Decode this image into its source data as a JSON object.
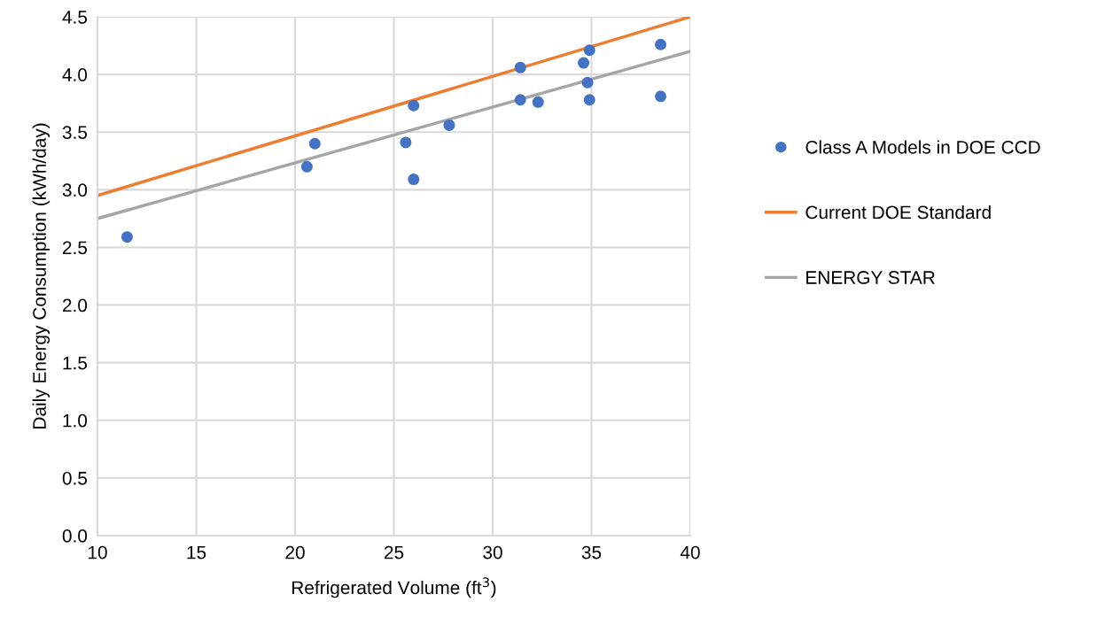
{
  "chart_data": {
    "type": "scatter",
    "xlabel": "Refrigerated Volume (ft$^{3}$)",
    "ylabel": "Daily Energy Consumption (kWh/day)",
    "xlim": [
      10,
      40
    ],
    "xticks": [
      10,
      15,
      20,
      25,
      30,
      35,
      40
    ],
    "ylim": [
      0,
      4.5
    ],
    "yticks": [
      {
        "value": 0,
        "label": "0.0"
      },
      {
        "value": 0.5,
        "label": "0.5"
      },
      {
        "value": 1,
        "label": "1.0"
      },
      {
        "value": 1.5,
        "label": "1.5"
      },
      {
        "value": 2,
        "label": "2.0"
      },
      {
        "value": 2.5,
        "label": "2.5"
      },
      {
        "value": 3,
        "label": "3.0"
      },
      {
        "value": 3.5,
        "label": "3.5"
      },
      {
        "value": 4,
        "label": "4.0"
      },
      {
        "value": 4.5,
        "label": "4.5"
      }
    ],
    "grid": true,
    "legend": "right",
    "series": [
      {
        "name": "Class A Models in DOE CCD",
        "marker": "circle",
        "color": "#4472c4",
        "x": [
          11.5,
          20.6,
          21.0,
          25.6,
          26.0,
          26.0,
          27.8,
          31.4,
          31.4,
          32.3,
          34.6,
          34.8,
          34.9,
          34.9,
          38.5,
          38.5
        ],
        "values": [
          2.59,
          3.2,
          3.4,
          3.41,
          3.73,
          3.09,
          3.56,
          4.06,
          3.78,
          3.76,
          4.1,
          3.93,
          4.21,
          3.78,
          4.26,
          3.81
        ]
      },
      {
        "name": "Current DOE Standard",
        "type": "line",
        "marker": "none",
        "color": "#ed7d31",
        "x": [
          10,
          40
        ],
        "values": [
          2.95,
          4.5
        ]
      },
      {
        "name": "ENERGY STAR",
        "type": "line",
        "marker": "none",
        "color": "#a5a5a5",
        "x": [
          10,
          40
        ],
        "values": [
          2.75,
          4.2
        ]
      }
    ]
  }
}
